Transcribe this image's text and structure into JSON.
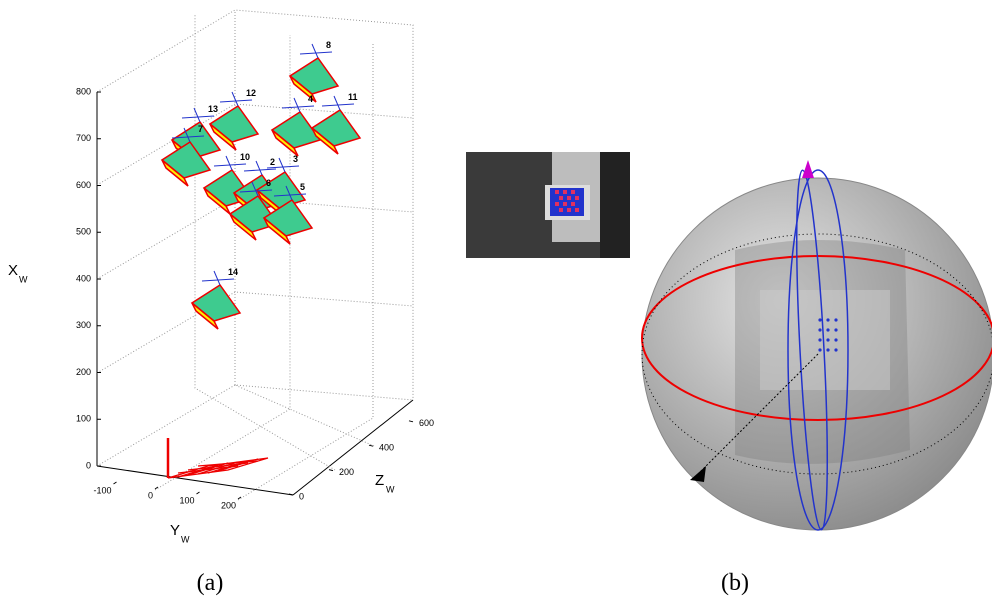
{
  "panel_a": {
    "x_axis": {
      "label": "X",
      "sub": "W",
      "ticks": [
        0,
        100,
        200,
        300,
        400,
        500,
        600,
        700,
        800
      ]
    },
    "y_axis": {
      "label": "Y",
      "sub": "W",
      "ticks": [
        -100,
        0,
        100,
        200
      ]
    },
    "z_axis": {
      "label": "Z",
      "sub": "W",
      "ticks": [
        0,
        200,
        400,
        600
      ]
    },
    "cameras": [
      "8",
      "12",
      "13",
      "4",
      "11",
      "7",
      "10",
      "2",
      "3",
      "6",
      "5",
      "14"
    ],
    "caption": "(a)"
  },
  "panel_b": {
    "caption": "(b)"
  }
}
